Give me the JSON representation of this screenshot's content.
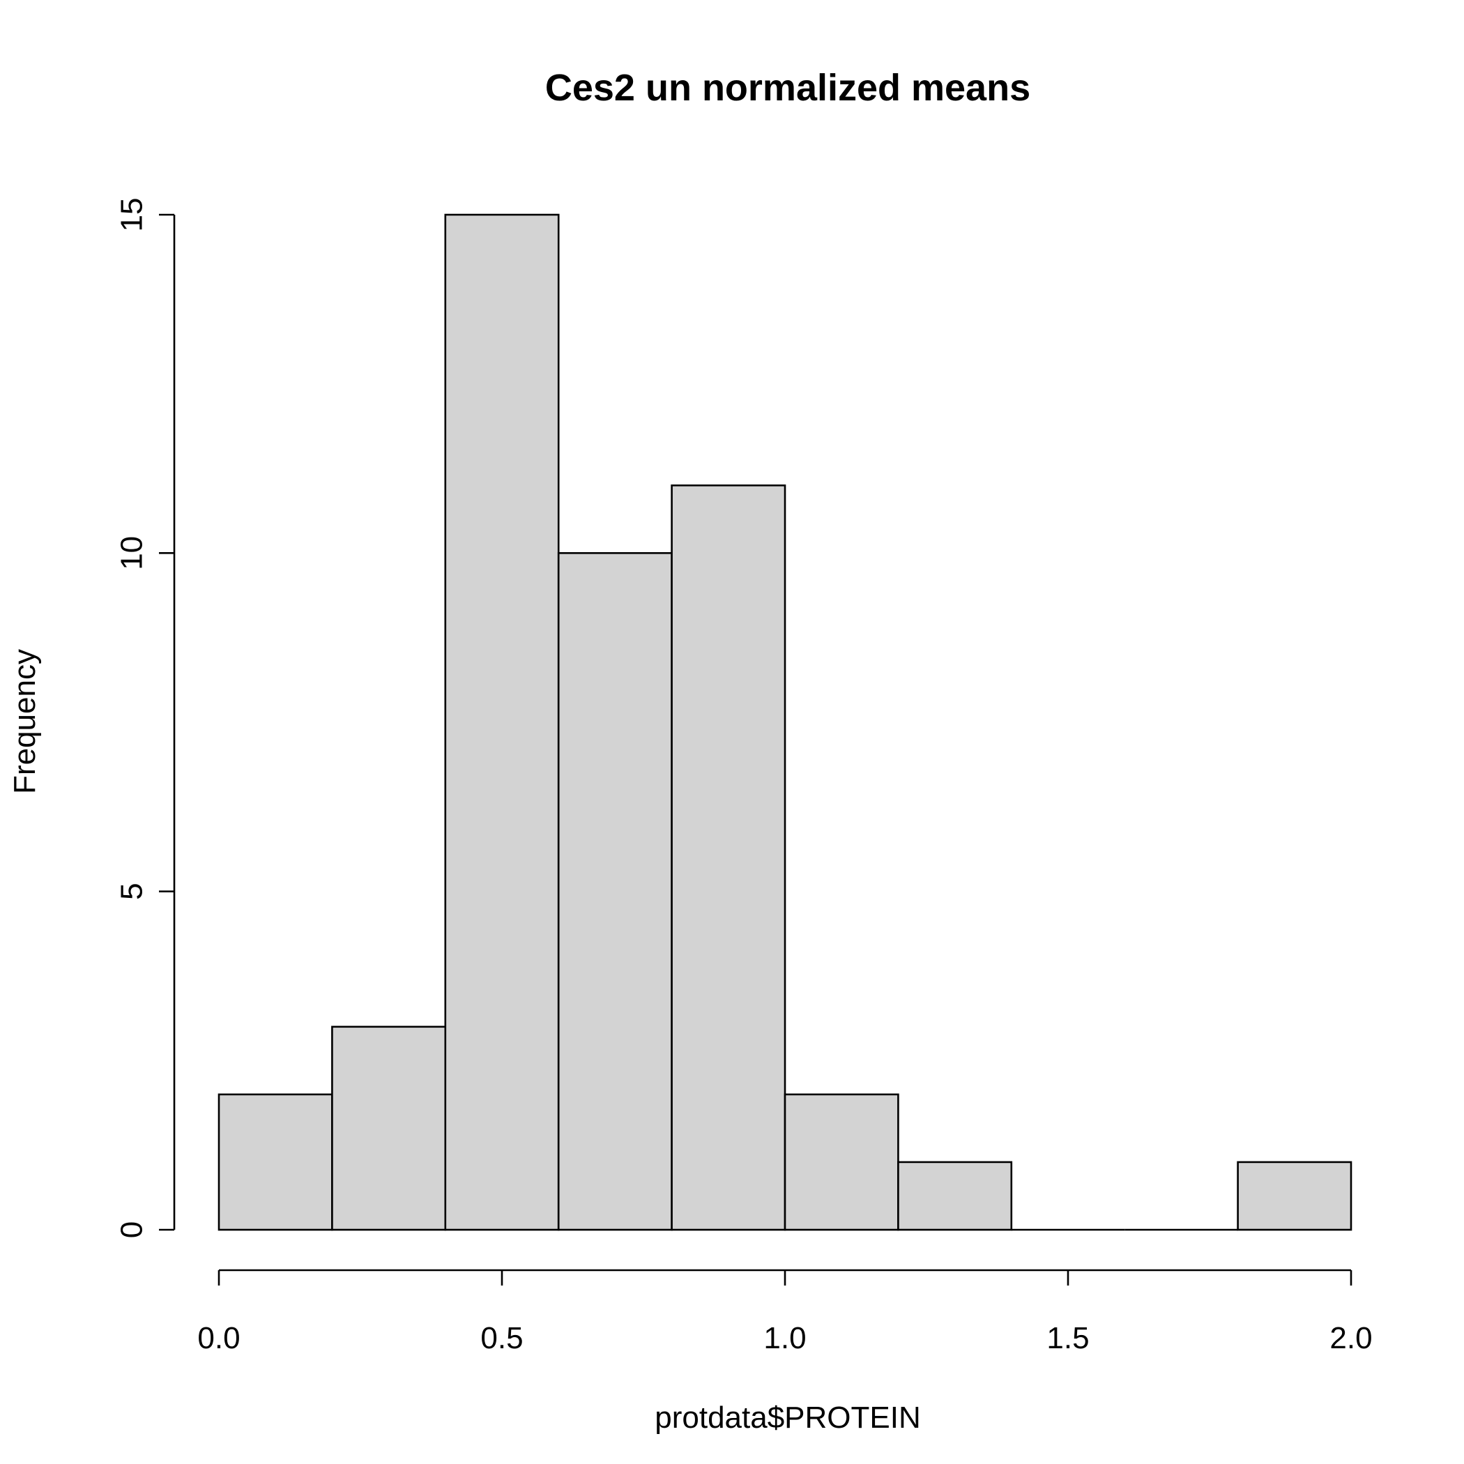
{
  "chart_data": {
    "type": "histogram",
    "title": "Ces2 un normalized means",
    "xlabel": "protdata$PROTEIN",
    "ylabel": "Frequency",
    "bin_edges": [
      0.0,
      0.2,
      0.4,
      0.6,
      0.8,
      1.0,
      1.2,
      1.4,
      1.6,
      1.8,
      2.0
    ],
    "counts": [
      2,
      3,
      15,
      10,
      11,
      2,
      1,
      0,
      0,
      1
    ],
    "xlim": [
      0.0,
      2.0
    ],
    "ylim": [
      0,
      15
    ],
    "x_ticks": [
      "0.0",
      "0.5",
      "1.0",
      "1.5",
      "2.0"
    ],
    "y_ticks": [
      "0",
      "5",
      "10",
      "15"
    ],
    "bar_color": "#d3d3d3",
    "border_color": "#000000",
    "grid": false,
    "legend": "none"
  }
}
